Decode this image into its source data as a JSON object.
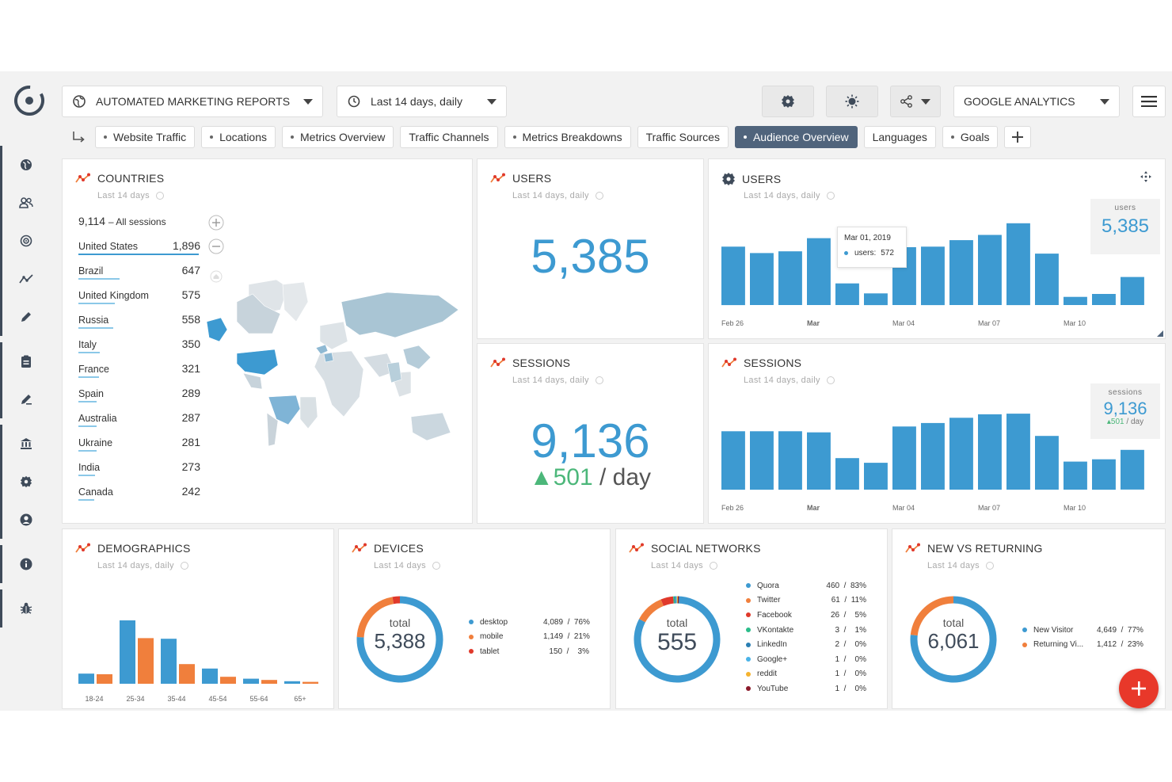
{
  "header": {
    "report_name": "AUTOMATED MARKETING REPORTS",
    "date_range": "Last 14 days, daily",
    "data_source": "GOOGLE ANALYTICS"
  },
  "tabs": [
    {
      "label": "Website Traffic",
      "dot": true,
      "active": false
    },
    {
      "label": "Locations",
      "dot": true,
      "active": false
    },
    {
      "label": "Metrics Overview",
      "dot": true,
      "active": false
    },
    {
      "label": "Traffic Channels",
      "dot": false,
      "active": false
    },
    {
      "label": "Metrics Breakdowns",
      "dot": true,
      "active": false
    },
    {
      "label": "Traffic Sources",
      "dot": false,
      "active": false
    },
    {
      "label": "Audience Overview",
      "dot": true,
      "active": true
    },
    {
      "label": "Languages",
      "dot": false,
      "active": false
    },
    {
      "label": "Goals",
      "dot": true,
      "active": false
    }
  ],
  "sidebar": {
    "icons": [
      "globe-icon",
      "users-icon",
      "target-icon",
      "trend-icon",
      "edit-icon",
      "clipboard-icon",
      "pen-icon",
      "bank-icon",
      "gear-icon",
      "user-circle-icon",
      "info-icon",
      "bug-icon"
    ]
  },
  "countries": {
    "title": "COUNTRIES",
    "subtitle": "Last 14 days",
    "total_value": "9,114",
    "total_label": "– All sessions",
    "rows": [
      {
        "name": "United States",
        "value": "1,896",
        "share": 1.0
      },
      {
        "name": "Brazil",
        "value": "647",
        "share": 0.34
      },
      {
        "name": "United Kingdom",
        "value": "575",
        "share": 0.3
      },
      {
        "name": "Russia",
        "value": "558",
        "share": 0.29
      },
      {
        "name": "Italy",
        "value": "350",
        "share": 0.18
      },
      {
        "name": "France",
        "value": "321",
        "share": 0.17
      },
      {
        "name": "Spain",
        "value": "289",
        "share": 0.15
      },
      {
        "name": "Australia",
        "value": "287",
        "share": 0.15
      },
      {
        "name": "Ukraine",
        "value": "281",
        "share": 0.15
      },
      {
        "name": "India",
        "value": "273",
        "share": 0.14
      },
      {
        "name": "Canada",
        "value": "242",
        "share": 0.13
      }
    ]
  },
  "users_kpi": {
    "title": "USERS",
    "subtitle": "Last 14 days, daily",
    "value": "5,385"
  },
  "sessions_kpi": {
    "title": "SESSIONS",
    "subtitle": "Last 14 days, daily",
    "value": "9,136",
    "delta": "▲501",
    "per": "/ day"
  },
  "users_chart": {
    "title": "USERS",
    "subtitle": "Last 14 days, daily",
    "box_label": "users",
    "box_value": "5,385",
    "tooltip_date": "Mar 01, 2019",
    "tooltip_label": "users:",
    "tooltip_value": "572",
    "x_labels": [
      "Feb 26",
      "Mar",
      "Mar 04",
      "Mar 07",
      "Mar 10"
    ],
    "chart_data": {
      "type": "bar",
      "values": [
        500,
        445,
        460,
        572,
        185,
        100,
        495,
        500,
        555,
        600,
        700,
        440,
        70,
        95,
        240
      ],
      "ylim": [
        0,
        800
      ]
    }
  },
  "sessions_chart": {
    "title": "SESSIONS",
    "subtitle": "Last 14 days, daily",
    "box_label": "sessions",
    "box_value": "9,136",
    "box_delta": "▴501",
    "box_per": "/ day",
    "x_labels": [
      "Feb 26",
      "Mar",
      "Mar 04",
      "Mar 07",
      "Mar 10"
    ],
    "chart_data": {
      "type": "bar",
      "values": [
        500,
        500,
        500,
        490,
        270,
        230,
        540,
        570,
        615,
        645,
        650,
        460,
        240,
        260,
        340
      ],
      "ylim": [
        0,
        800
      ]
    }
  },
  "demographics": {
    "title": "DEMOGRAPHICS",
    "subtitle": "Last 14 days, daily",
    "chart_data": {
      "type": "bar",
      "categories": [
        "18-24",
        "25-34",
        "35-44",
        "45-54",
        "55-64",
        "65+"
      ],
      "series": [
        {
          "color": "#3d9ad1",
          "values": [
            16,
            100,
            71,
            24,
            8,
            4
          ]
        },
        {
          "color": "#f07f3c",
          "values": [
            15,
            72,
            31,
            11,
            6,
            3
          ]
        }
      ]
    }
  },
  "devices": {
    "title": "DEVICES",
    "subtitle": "Last 14 days",
    "total_label": "total",
    "total_value": "5,388",
    "chart_data": {
      "type": "pie",
      "slices": [
        {
          "name": "desktop",
          "value": 4089,
          "pct": "76%",
          "color": "#3d9ad1"
        },
        {
          "name": "mobile",
          "value": 1149,
          "pct": "21%",
          "color": "#f07f3c"
        },
        {
          "name": "tablet",
          "value": 150,
          "pct": "3%",
          "color": "#e0392b"
        }
      ]
    },
    "legend": [
      {
        "name": "desktop",
        "val": "4,089  /  76%",
        "color": "#3d9ad1"
      },
      {
        "name": "mobile",
        "val": "1,149  /  21%",
        "color": "#f07f3c"
      },
      {
        "name": "tablet",
        "val": "150  /    3%",
        "color": "#e0392b"
      }
    ]
  },
  "social": {
    "title": "SOCIAL NETWORKS",
    "subtitle": "Last 14 days",
    "total_label": "total",
    "total_value": "555",
    "chart_data": {
      "type": "pie",
      "slices": [
        {
          "name": "Quora",
          "value": 460,
          "color": "#3d9ad1"
        },
        {
          "name": "Twitter",
          "value": 61,
          "color": "#f07f3c"
        },
        {
          "name": "Facebook",
          "value": 26,
          "color": "#e0392b"
        },
        {
          "name": "VKontakte",
          "value": 3,
          "color": "#2bbd8a"
        },
        {
          "name": "LinkedIn",
          "value": 2,
          "color": "#2a7fb3"
        },
        {
          "name": "Google+",
          "value": 1,
          "color": "#4ab3e8"
        },
        {
          "name": "reddit",
          "value": 1,
          "color": "#f5b32f"
        },
        {
          "name": "YouTube",
          "value": 1,
          "color": "#8b1a2a"
        }
      ]
    },
    "legend": [
      {
        "name": "Quora",
        "val": "460  /  83%",
        "color": "#3d9ad1"
      },
      {
        "name": "Twitter",
        "val": "61  /  11%",
        "color": "#f07f3c"
      },
      {
        "name": "Facebook",
        "val": "26  /    5%",
        "color": "#e0392b"
      },
      {
        "name": "VKontakte",
        "val": "3  /    1%",
        "color": "#2bbd8a"
      },
      {
        "name": "LinkedIn",
        "val": "2  /    0%",
        "color": "#2a7fb3"
      },
      {
        "name": "Google+",
        "val": "1  /    0%",
        "color": "#4ab3e8"
      },
      {
        "name": "reddit",
        "val": "1  /    0%",
        "color": "#f5b32f"
      },
      {
        "name": "YouTube",
        "val": "1  /    0%",
        "color": "#8b1a2a"
      }
    ]
  },
  "returning": {
    "title": "NEW VS RETURNING",
    "subtitle": "Last 14 days",
    "total_label": "total",
    "total_value": "6,061",
    "chart_data": {
      "type": "pie",
      "slices": [
        {
          "name": "New Visitor",
          "value": 4649,
          "color": "#3d9ad1"
        },
        {
          "name": "Returning Vi...",
          "value": 1412,
          "color": "#f07f3c"
        }
      ]
    },
    "legend": [
      {
        "name": "New Visitor",
        "val": "4,649  /  77%",
        "color": "#3d9ad1"
      },
      {
        "name": "Returning Vi...",
        "val": "1,412  /  23%",
        "color": "#f07f3c"
      }
    ]
  }
}
